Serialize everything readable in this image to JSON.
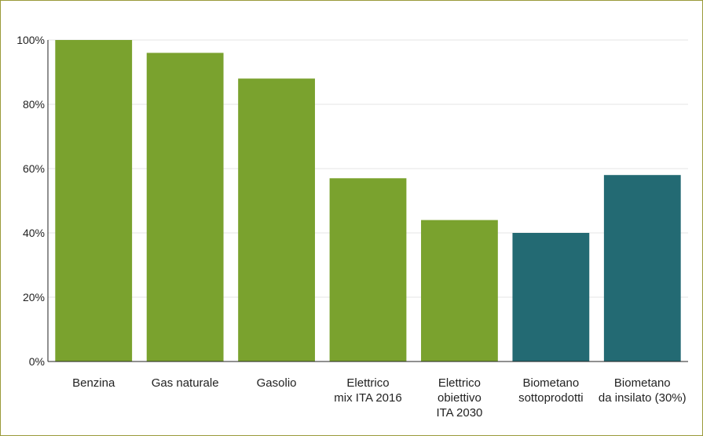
{
  "chart_data": {
    "type": "bar",
    "title": "",
    "xlabel": "",
    "ylabel": "",
    "categories": [
      [
        "Benzina"
      ],
      [
        "Gas naturale"
      ],
      [
        "Gasolio"
      ],
      [
        "Elettrico",
        "mix ITA 2016"
      ],
      [
        "Elettrico",
        "obiettivo",
        "ITA 2030"
      ],
      [
        "Biometano",
        "sottoprodotti"
      ],
      [
        "Biometano",
        "da insilato (30%)"
      ]
    ],
    "values": [
      100,
      96,
      88,
      57,
      44,
      40,
      58
    ],
    "bar_colors": [
      "#7aa22e",
      "#7aa22e",
      "#7aa22e",
      "#7aa22e",
      "#7aa22e",
      "#236a73",
      "#236a73"
    ],
    "ylim": [
      0,
      100
    ],
    "yticks": [
      0,
      20,
      40,
      60,
      80,
      100
    ],
    "ytick_labels": [
      "0%",
      "20%",
      "40%",
      "60%",
      "80%",
      "100%"
    ],
    "grid": true,
    "legend": "none"
  }
}
